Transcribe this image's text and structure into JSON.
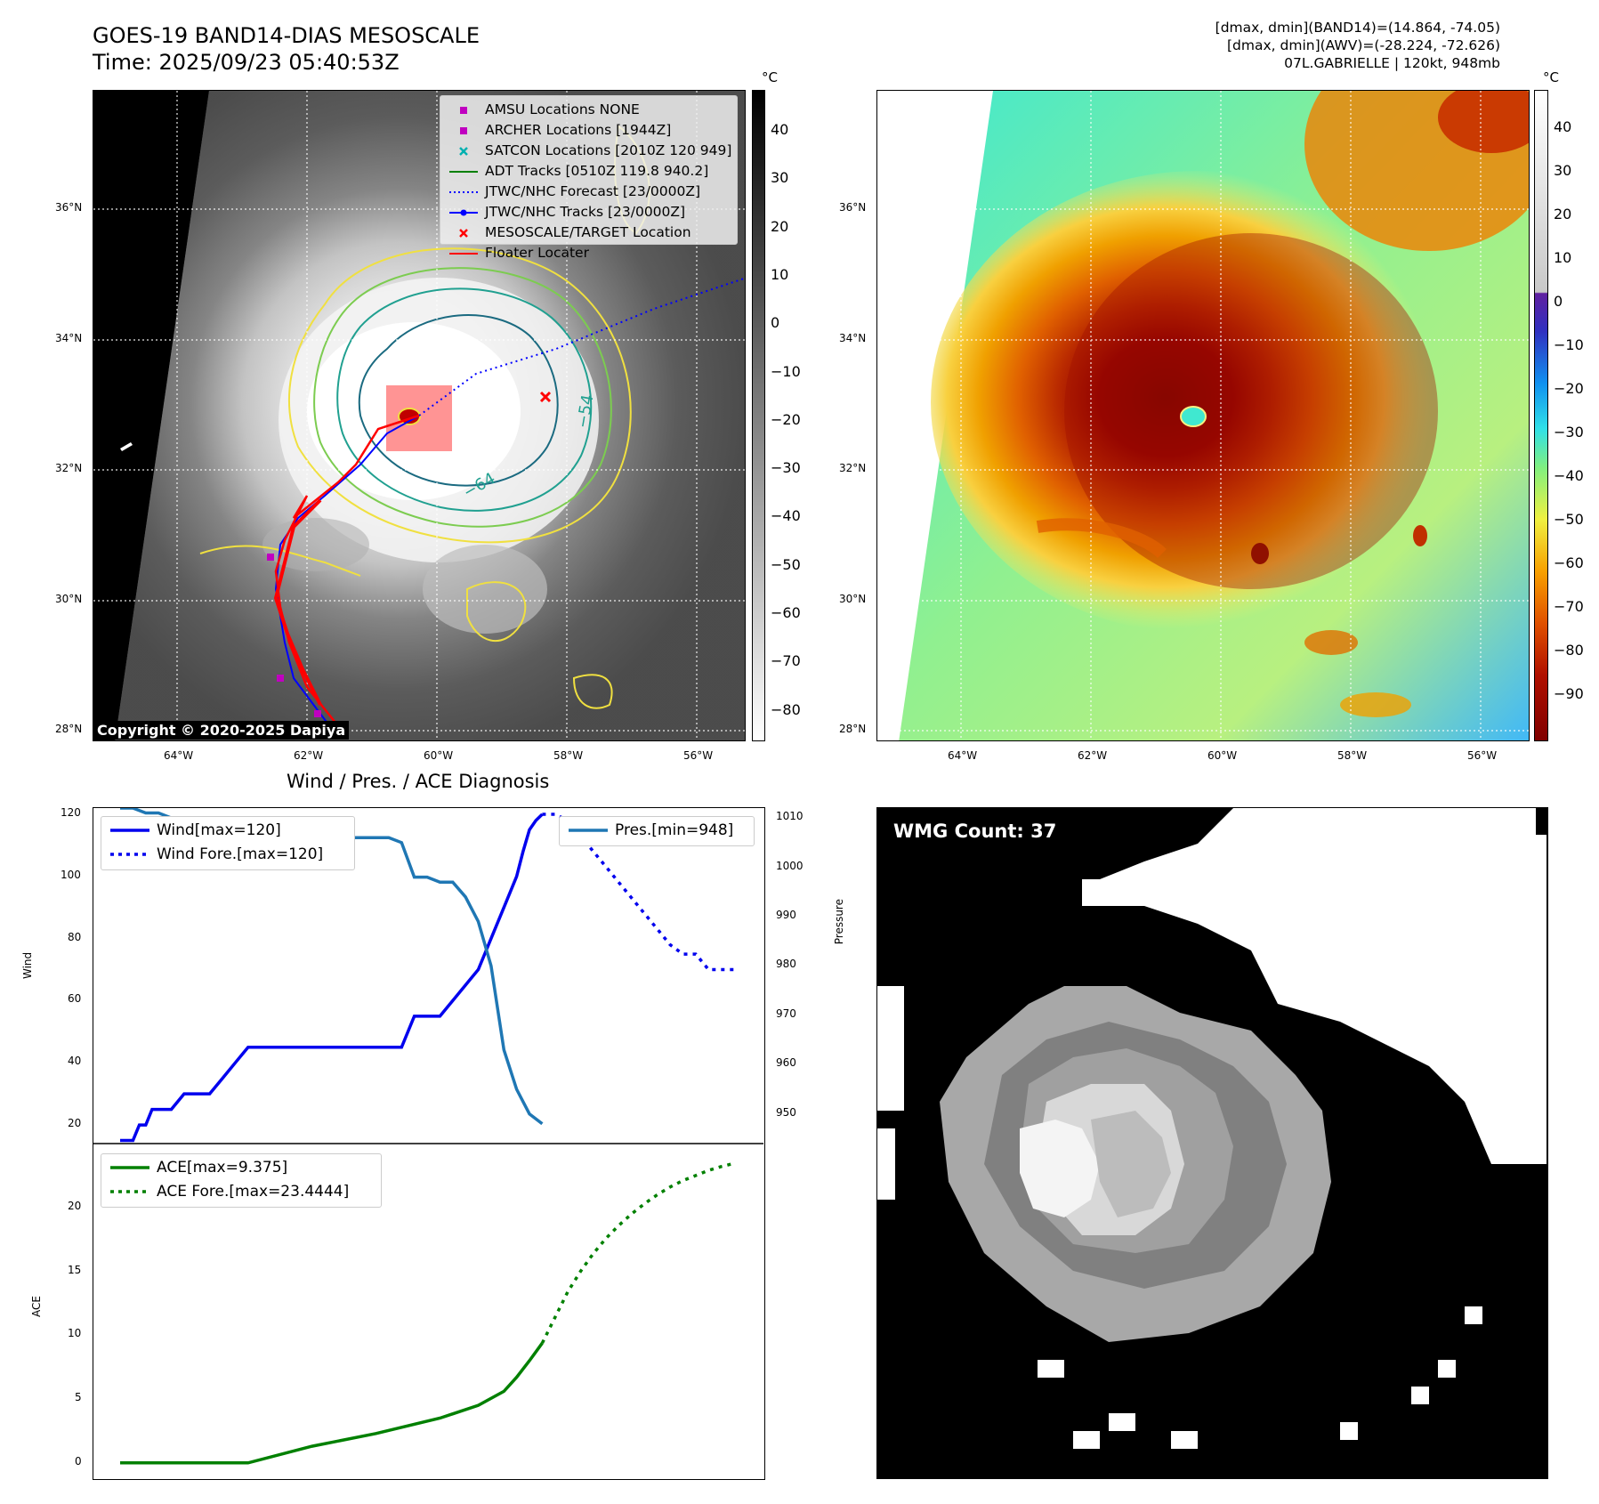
{
  "header": {
    "title_line1": "GOES-19 BAND14-DIAS MESOSCALE",
    "title_line2": "Time: 2025/09/23 05:40:53Z",
    "info_line1": "[dmax, dmin](BAND14)=(14.864, -74.05)",
    "info_line2": "[dmax, dmin](AWV)=(-28.224, -72.626)",
    "info_line3": "07L.GABRIELLE | 120kt, 948mb"
  },
  "map_axes": {
    "lat_labels": [
      "36°N",
      "34°N",
      "32°N",
      "30°N",
      "28°N"
    ],
    "lon_labels": [
      "64°W",
      "62°W",
      "60°W",
      "58°W",
      "56°W"
    ]
  },
  "ir_panel": {
    "colorbar_unit": "°C",
    "colorbar_ticks": [
      "40",
      "30",
      "20",
      "10",
      "0",
      "−10",
      "−20",
      "−30",
      "−40",
      "−50",
      "−60",
      "−70",
      "−80"
    ],
    "copyright": "Copyright © 2020-2025 Dapiya",
    "contour_labels": [
      "−54",
      "−64"
    ],
    "legend": [
      {
        "label": "AMSU Locations NONE",
        "symbol": "square",
        "color": "#c000c0"
      },
      {
        "label": "ARCHER Locations [1944Z]",
        "symbol": "square",
        "color": "#c000c0"
      },
      {
        "label": "SATCON Locations [2010Z 120 949]",
        "symbol": "x",
        "color": "#00b0b0"
      },
      {
        "label": "ADT Tracks [0510Z 119.8 940.2]",
        "symbol": "line",
        "color": "#008000"
      },
      {
        "label": "JTWC/NHC Forecast [23/0000Z]",
        "symbol": "dotted",
        "color": "#0000ff"
      },
      {
        "label": "JTWC/NHC Tracks [23/0000Z]",
        "symbol": "line-dot",
        "color": "#0000ff"
      },
      {
        "label": "MESOSCALE/TARGET Location",
        "symbol": "x",
        "color": "#ff0000"
      },
      {
        "label": "Floater Locater",
        "symbol": "line",
        "color": "#ff0000"
      }
    ]
  },
  "awv_panel": {
    "colorbar_unit": "°C",
    "colorbar_ticks": [
      "40",
      "30",
      "20",
      "10",
      "0",
      "−10",
      "−20",
      "−30",
      "−40",
      "−50",
      "−60",
      "−70",
      "−80",
      "−90"
    ]
  },
  "diagnosis": {
    "title": "Wind / Pres. / ACE Diagnosis",
    "wind_ylabel": "Wind",
    "pressure_ylabel": "Pressure",
    "ace_ylabel": "ACE",
    "wind_legend": [
      "Wind[max=120]",
      "Wind Fore.[max=120]"
    ],
    "pressure_legend": [
      "Pres.[min=948]"
    ],
    "ace_legend": [
      "ACE[max=9.375]",
      "ACE Fore.[max=23.4444]"
    ]
  },
  "wmg_panel": {
    "count_label": "WMG Count: 37"
  },
  "chart_data": [
    {
      "type": "line",
      "title": "Wind / Pres. / ACE Diagnosis",
      "ylabel": "Wind",
      "ylim": [
        14,
        122
      ],
      "yticks": [
        20,
        40,
        60,
        80,
        100,
        120
      ],
      "series": [
        {
          "name": "Wind[max=120]",
          "color": "#0000ee",
          "style": "solid",
          "x": [
            0,
            1,
            1.5,
            2,
            2.5,
            3,
            4,
            5,
            6,
            7,
            8,
            9,
            10,
            11,
            12,
            13,
            14,
            15,
            16,
            17,
            18,
            19,
            20,
            21,
            22,
            23,
            24,
            25,
            26,
            27,
            28,
            29,
            30,
            31,
            31.5,
            32,
            32.5,
            33
          ],
          "values": [
            15,
            15,
            20,
            20,
            25,
            25,
            25,
            30,
            30,
            30,
            35,
            40,
            45,
            45,
            45,
            45,
            45,
            45,
            45,
            45,
            45,
            45,
            45,
            45,
            45,
            55,
            55,
            55,
            60,
            65,
            70,
            80,
            90,
            100,
            108,
            115,
            118,
            120
          ]
        },
        {
          "name": "Wind Fore.[max=120]",
          "color": "#0000ee",
          "style": "dotted",
          "x": [
            33,
            34,
            35,
            36,
            37,
            38,
            39,
            40,
            41,
            42,
            43,
            44,
            45,
            46,
            47,
            48
          ],
          "values": [
            120,
            120,
            118,
            113,
            108,
            103,
            98,
            93,
            88,
            83,
            78,
            75,
            75,
            70,
            70,
            70
          ]
        }
      ]
    },
    {
      "type": "line",
      "ylabel": "Pressure",
      "ylim": [
        944,
        1012
      ],
      "yticks": [
        950,
        960,
        970,
        980,
        990,
        1000,
        1010
      ],
      "series": [
        {
          "name": "Pres.[min=948]",
          "color": "#1f77b4",
          "style": "solid",
          "x": [
            0,
            1,
            2,
            3,
            4,
            5,
            6,
            7,
            8,
            9,
            10,
            11,
            12,
            13,
            14,
            15,
            16,
            17,
            18,
            19,
            20,
            21,
            22,
            23,
            24,
            25,
            26,
            27,
            28,
            29,
            30,
            31,
            32,
            33
          ],
          "values": [
            1012,
            1012,
            1011,
            1011,
            1010,
            1009,
            1008,
            1007,
            1007,
            1006,
            1006,
            1006,
            1006,
            1006,
            1006,
            1006,
            1006,
            1006,
            1006,
            1006,
            1006,
            1006,
            1005,
            998,
            998,
            997,
            997,
            994,
            989,
            980,
            963,
            955,
            950,
            948
          ]
        }
      ]
    },
    {
      "type": "line",
      "ylabel": "ACE",
      "ylim": [
        -1.2,
        25
      ],
      "yticks": [
        0,
        5,
        10,
        15,
        20
      ],
      "series": [
        {
          "name": "ACE[max=9.375]",
          "color": "#008000",
          "style": "solid",
          "x": [
            0,
            5,
            10,
            15,
            20,
            25,
            28,
            30,
            31,
            32,
            33
          ],
          "values": [
            0,
            0,
            0,
            1.3,
            2.3,
            3.5,
            4.5,
            5.6,
            6.7,
            8.0,
            9.375
          ]
        },
        {
          "name": "ACE Fore.[max=23.4444]",
          "color": "#008000",
          "style": "dotted",
          "x": [
            33,
            34,
            35,
            36,
            37,
            38,
            39,
            40,
            41,
            42,
            43,
            44,
            45,
            46,
            47,
            48
          ],
          "values": [
            9.375,
            11.4,
            13.4,
            15.0,
            16.4,
            17.6,
            18.6,
            19.5,
            20.3,
            21.0,
            21.6,
            22.1,
            22.5,
            22.9,
            23.2,
            23.4444
          ]
        }
      ]
    }
  ],
  "colors": {
    "background": "#ffffff",
    "map_background": "#000000",
    "contour_yellow": "#f0e040",
    "contour_green": "#7ccc50",
    "contour_teal": "#20a090",
    "contour_darkteal": "#1a6a80",
    "track_red": "#ff0000",
    "track_blue": "#0000ff"
  }
}
